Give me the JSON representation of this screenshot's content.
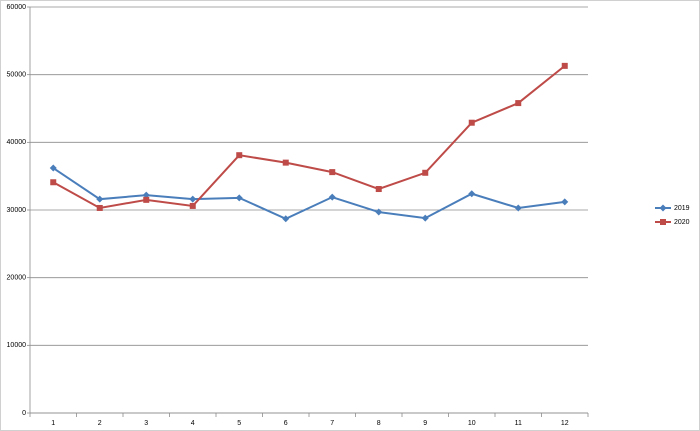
{
  "chart_data": {
    "type": "line",
    "categories": [
      "1",
      "2",
      "3",
      "4",
      "5",
      "6",
      "7",
      "8",
      "9",
      "10",
      "11",
      "12"
    ],
    "series": [
      {
        "name": "2019",
        "color": "#4a7ebb",
        "marker": "diamond",
        "values": [
          36200,
          31600,
          32200,
          31600,
          31800,
          28700,
          31900,
          29700,
          28800,
          32400,
          30300,
          31200
        ]
      },
      {
        "name": "2020",
        "color": "#be4b48",
        "marker": "square",
        "values": [
          34100,
          30300,
          31500,
          30600,
          38100,
          37000,
          35600,
          33100,
          35500,
          42900,
          45800,
          51300
        ]
      }
    ],
    "ylim": [
      0,
      60000
    ],
    "yticks": [
      0,
      10000,
      20000,
      30000,
      40000,
      50000,
      60000
    ],
    "grid": true,
    "legend": "right"
  }
}
